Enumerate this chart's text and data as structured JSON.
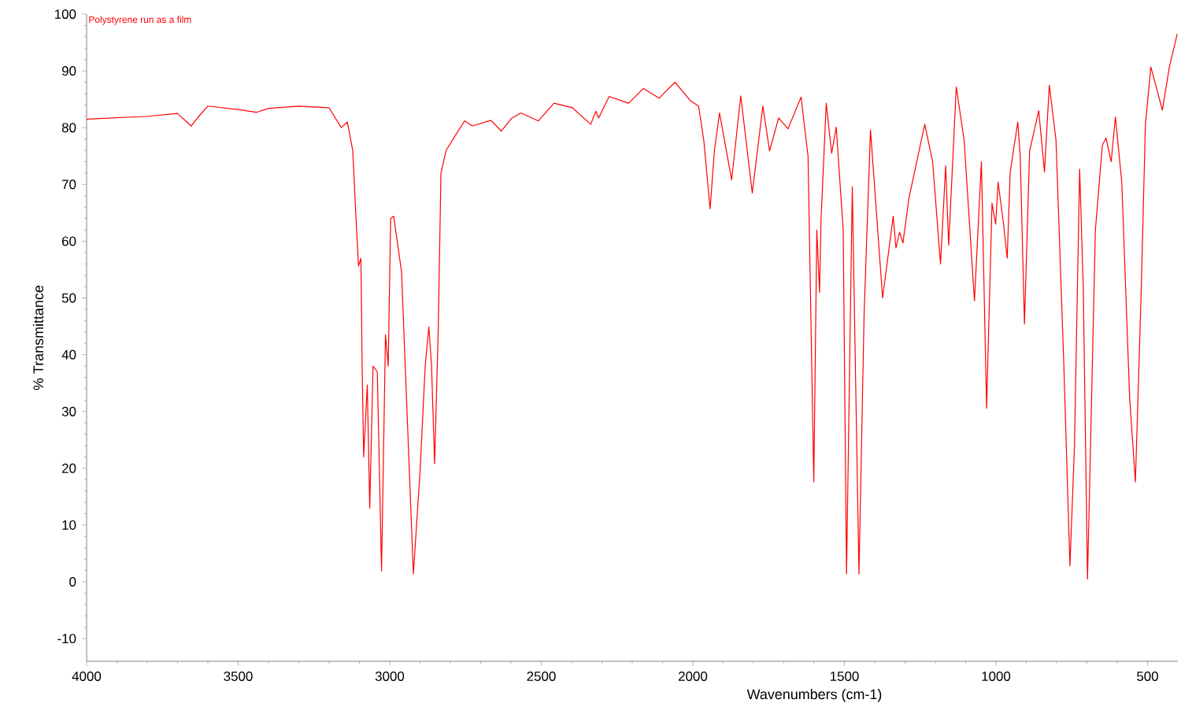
{
  "chart_data": {
    "type": "line",
    "title": "Polystyrene run as a film",
    "xlabel": "Wavenumbers (cm-1)",
    "ylabel": "% Transmittance",
    "xlim": [
      4000,
      400
    ],
    "ylim": [
      -14,
      100
    ],
    "xticks": [
      4000,
      3500,
      3000,
      2500,
      2000,
      1500,
      1000,
      500
    ],
    "yticks": [
      -10,
      0,
      10,
      20,
      30,
      40,
      50,
      60,
      70,
      80,
      90,
      100
    ],
    "marker": "none",
    "line_style": "solid",
    "series": [
      {
        "color": "#ff0000",
        "x": [
          4000,
          3800,
          3700,
          3655,
          3630,
          3600,
          3500,
          3440,
          3400,
          3300,
          3200,
          3160,
          3140,
          3122,
          3112,
          3103,
          3095,
          3091,
          3086,
          3074,
          3066,
          3055,
          3041,
          3027,
          3014,
          3005,
          2997,
          2987,
          2961,
          2922,
          2900,
          2883,
          2871,
          2862,
          2852,
          2840,
          2831,
          2814,
          2779,
          2753,
          2727,
          2666,
          2632,
          2597,
          2567,
          2510,
          2458,
          2397,
          2337,
          2320,
          2311,
          2276,
          2212,
          2163,
          2111,
          2059,
          2007,
          1981,
          1964,
          1943,
          1929,
          1912,
          1872,
          1842,
          1804,
          1769,
          1747,
          1717,
          1686,
          1643,
          1620,
          1601,
          1591,
          1582,
          1577,
          1560,
          1542,
          1527,
          1504,
          1493,
          1474,
          1452,
          1435,
          1414,
          1374,
          1339,
          1330,
          1318,
          1307,
          1287,
          1235,
          1209,
          1183,
          1166,
          1156,
          1131,
          1105,
          1071,
          1048,
          1031,
          1013,
          1001,
          993,
          975,
          963,
          953,
          928,
          920,
          906,
          889,
          859,
          840,
          824,
          802,
          776,
          756,
          741,
          724,
          712,
          698,
          672,
          649,
          637,
          620,
          606,
          585,
          559,
          540,
          521,
          507,
          489,
          451,
          428,
          402
        ],
        "values": [
          81.5,
          82,
          82.5,
          80.3,
          82,
          83.8,
          83.2,
          82.7,
          83.4,
          83.8,
          83.5,
          80,
          81,
          76,
          64.8,
          55.6,
          57,
          38,
          22,
          34.7,
          13,
          38,
          37,
          1.9,
          43.5,
          38,
          64,
          64.4,
          54.6,
          1.4,
          19.4,
          38,
          44.9,
          38,
          20.8,
          44.4,
          72,
          76,
          79,
          81.2,
          80.3,
          81.3,
          79.4,
          81.7,
          82.6,
          81.2,
          84.3,
          83.5,
          80.6,
          82.9,
          81.7,
          85.5,
          84.3,
          86.9,
          85.2,
          88,
          84.7,
          83.8,
          77.8,
          65.7,
          75.9,
          82.6,
          70.8,
          85.6,
          68.5,
          83.8,
          75.9,
          81.7,
          79.8,
          85.4,
          75,
          17.6,
          62,
          51,
          63.9,
          84.3,
          75.5,
          80.1,
          62,
          1.4,
          69.6,
          1.4,
          47.2,
          79.6,
          50,
          64.4,
          58.8,
          61.6,
          59.7,
          67.6,
          80.6,
          74,
          56,
          73.3,
          59.3,
          87.2,
          77.8,
          49.5,
          74,
          30.6,
          66.7,
          63,
          70.4,
          63,
          57,
          72.2,
          81,
          75,
          45.4,
          75.9,
          83,
          72.2,
          87.5,
          77.8,
          38,
          2.8,
          24,
          72.7,
          51.9,
          0.5,
          62,
          76.9,
          78.2,
          74,
          81.9,
          70.4,
          32.4,
          17.6,
          51,
          80.6,
          90.7,
          83.1,
          90.7,
          96.5
        ]
      }
    ]
  }
}
